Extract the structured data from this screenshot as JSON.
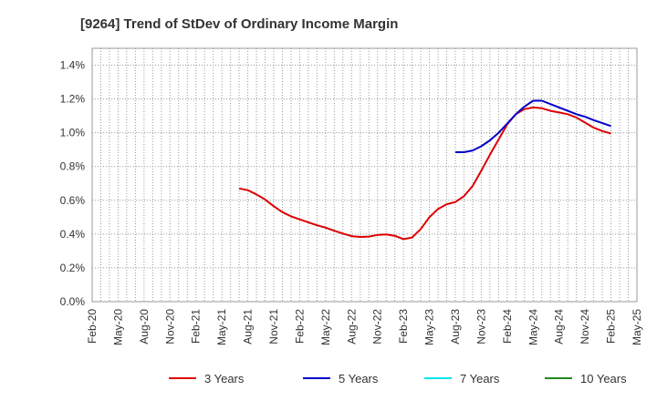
{
  "chart_data": {
    "type": "line",
    "title": "[9264]  Trend of StDev of Ordinary Income Margin",
    "xlabel": "",
    "ylabel": "",
    "x_ticks": [
      "Feb-20",
      "May-20",
      "Aug-20",
      "Nov-20",
      "Feb-21",
      "May-21",
      "Aug-21",
      "Nov-21",
      "Feb-22",
      "May-22",
      "Aug-22",
      "Nov-22",
      "Feb-23",
      "May-23",
      "Aug-23",
      "Nov-23",
      "Feb-24",
      "May-24",
      "Aug-24",
      "Nov-24",
      "Feb-25",
      "May-25"
    ],
    "y_ticks": [
      "0.0%",
      "0.2%",
      "0.4%",
      "0.6%",
      "0.8%",
      "1.0%",
      "1.2%",
      "1.4%"
    ],
    "ylim": [
      0,
      1.5
    ],
    "y_unit": "%",
    "grid": true,
    "legend_position": "bottom",
    "series": [
      {
        "name": "3 Years",
        "color": "#dd0000",
        "x": [
          "Jul-21",
          "Aug-21",
          "Sep-21",
          "Oct-21",
          "Nov-21",
          "Dec-21",
          "Jan-22",
          "Feb-22",
          "Mar-22",
          "Apr-22",
          "May-22",
          "Jun-22",
          "Jul-22",
          "Aug-22",
          "Sep-22",
          "Oct-22",
          "Nov-22",
          "Dec-22",
          "Jan-23",
          "Feb-23",
          "Mar-23",
          "Apr-23",
          "May-23",
          "Jun-23",
          "Jul-23",
          "Aug-23",
          "Sep-23",
          "Oct-23",
          "Nov-23",
          "Dec-23",
          "Jan-24",
          "Feb-24",
          "Mar-24",
          "Apr-24",
          "May-24",
          "Jun-24",
          "Jul-24",
          "Aug-24",
          "Sep-24",
          "Oct-24",
          "Nov-24",
          "Dec-24",
          "Jan-25",
          "Feb-25"
        ],
        "values": [
          0.67,
          0.66,
          0.635,
          0.605,
          0.565,
          0.53,
          0.505,
          0.487,
          0.47,
          0.452,
          0.438,
          0.42,
          0.403,
          0.388,
          0.383,
          0.385,
          0.395,
          0.398,
          0.39,
          0.37,
          0.38,
          0.43,
          0.5,
          0.548,
          0.577,
          0.59,
          0.625,
          0.685,
          0.775,
          0.87,
          0.96,
          1.05,
          1.11,
          1.14,
          1.15,
          1.145,
          1.13,
          1.12,
          1.11,
          1.09,
          1.06,
          1.03,
          1.01,
          0.995
        ]
      },
      {
        "name": "5 Years",
        "color": "#0000cc",
        "x": [
          "Aug-23",
          "Sep-23",
          "Oct-23",
          "Nov-23",
          "Dec-23",
          "Jan-24",
          "Feb-24",
          "Mar-24",
          "Apr-24",
          "May-24",
          "Jun-24",
          "Jul-24",
          "Aug-24",
          "Sep-24",
          "Oct-24",
          "Nov-24",
          "Dec-24",
          "Jan-25",
          "Feb-25"
        ],
        "values": [
          0.885,
          0.885,
          0.895,
          0.92,
          0.955,
          1.0,
          1.055,
          1.11,
          1.155,
          1.19,
          1.19,
          1.17,
          1.15,
          1.13,
          1.11,
          1.095,
          1.075,
          1.057,
          1.04
        ]
      },
      {
        "name": "7 Years",
        "color": "#00e5ee",
        "x": [],
        "values": []
      },
      {
        "name": "10 Years",
        "color": "#228b22",
        "x": [],
        "values": []
      }
    ]
  }
}
